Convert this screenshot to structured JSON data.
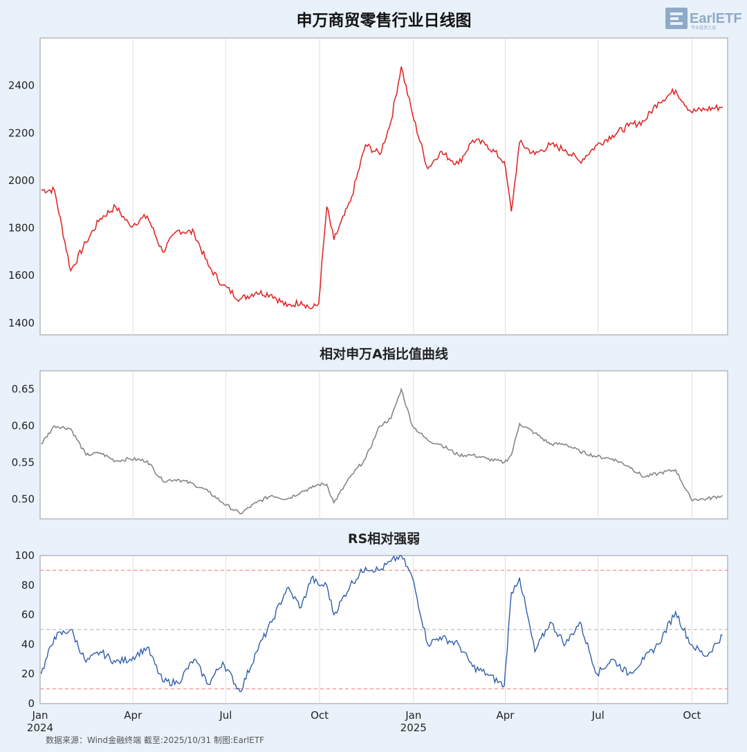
{
  "chart_data": [
    {
      "type": "line",
      "title": "申万商贸零售行业日线图",
      "ylim": [
        1350,
        2600
      ],
      "yticks": [
        1400,
        1600,
        1800,
        2000,
        2200,
        2400
      ],
      "color": "#e02828",
      "series": [
        {
          "x": [
            "2024-01-02",
            "2024-01-15",
            "2024-01-31",
            "2024-02-15",
            "2024-02-29",
            "2024-03-15",
            "2024-03-29",
            "2024-04-15",
            "2024-04-30",
            "2024-05-15",
            "2024-05-31",
            "2024-06-14",
            "2024-06-28",
            "2024-07-15",
            "2024-07-31",
            "2024-08-15",
            "2024-08-30",
            "2024-09-13",
            "2024-09-23",
            "2024-09-30",
            "2024-10-08",
            "2024-10-15",
            "2024-10-31",
            "2024-11-15",
            "2024-11-29",
            "2024-12-10",
            "2024-12-20",
            "2024-12-31",
            "2025-01-15",
            "2025-01-27",
            "2025-02-14",
            "2025-02-28",
            "2025-03-14",
            "2025-03-31",
            "2025-04-07",
            "2025-04-15",
            "2025-04-30",
            "2025-05-15",
            "2025-05-30",
            "2025-06-13",
            "2025-06-30",
            "2025-07-15",
            "2025-07-31",
            "2025-08-15",
            "2025-08-29",
            "2025-09-15",
            "2025-09-30",
            "2025-10-15",
            "2025-10-31"
          ],
          "values": [
            1960,
            1960,
            1620,
            1740,
            1840,
            1890,
            1810,
            1850,
            1700,
            1790,
            1780,
            1640,
            1560,
            1500,
            1530,
            1520,
            1470,
            1490,
            1460,
            1480,
            1890,
            1750,
            1910,
            2150,
            2110,
            2250,
            2480,
            2280,
            2050,
            2120,
            2070,
            2170,
            2150,
            2080,
            1870,
            2160,
            2110,
            2150,
            2130,
            2080,
            2150,
            2190,
            2230,
            2250,
            2330,
            2380,
            2290,
            2300,
            2310
          ]
        }
      ]
    },
    {
      "type": "line",
      "title": "相对申万A指比值曲线",
      "ylim": [
        0.473,
        0.675
      ],
      "yticks": [
        "0.50",
        "0.55",
        "0.60",
        "0.65"
      ],
      "color": "#858585",
      "series": [
        {
          "x": [
            "2024-01-02",
            "2024-01-15",
            "2024-01-31",
            "2024-02-15",
            "2024-02-29",
            "2024-03-15",
            "2024-03-29",
            "2024-04-15",
            "2024-04-30",
            "2024-05-15",
            "2024-05-31",
            "2024-06-14",
            "2024-06-28",
            "2024-07-15",
            "2024-07-31",
            "2024-08-15",
            "2024-08-30",
            "2024-09-13",
            "2024-09-23",
            "2024-09-30",
            "2024-10-08",
            "2024-10-15",
            "2024-10-31",
            "2024-11-15",
            "2024-11-29",
            "2024-12-10",
            "2024-12-20",
            "2024-12-31",
            "2025-01-15",
            "2025-01-27",
            "2025-02-14",
            "2025-02-28",
            "2025-03-14",
            "2025-03-31",
            "2025-04-07",
            "2025-04-15",
            "2025-04-30",
            "2025-05-15",
            "2025-05-30",
            "2025-06-13",
            "2025-06-30",
            "2025-07-15",
            "2025-07-31",
            "2025-08-15",
            "2025-08-29",
            "2025-09-15",
            "2025-09-30",
            "2025-10-15",
            "2025-10-31"
          ],
          "values": [
            0.575,
            0.6,
            0.596,
            0.56,
            0.563,
            0.552,
            0.555,
            0.552,
            0.525,
            0.527,
            0.52,
            0.51,
            0.495,
            0.48,
            0.495,
            0.505,
            0.5,
            0.51,
            0.515,
            0.52,
            0.52,
            0.495,
            0.53,
            0.555,
            0.6,
            0.61,
            0.65,
            0.6,
            0.58,
            0.575,
            0.56,
            0.56,
            0.555,
            0.55,
            0.56,
            0.603,
            0.59,
            0.575,
            0.575,
            0.565,
            0.558,
            0.555,
            0.545,
            0.53,
            0.535,
            0.54,
            0.5,
            0.5,
            0.505
          ]
        }
      ]
    },
    {
      "type": "line",
      "title": "RS相对强弱",
      "ylim": [
        0,
        100
      ],
      "yticks": [
        0,
        20,
        40,
        60,
        80,
        100
      ],
      "reference_lines": [
        {
          "y": 90,
          "color": "#ff8c8c"
        },
        {
          "y": 50,
          "color": "#bbbbbb"
        },
        {
          "y": 10,
          "color": "#ff8c8c"
        }
      ],
      "color": "#2f5ca8",
      "series": [
        {
          "x": [
            "2024-01-02",
            "2024-01-15",
            "2024-01-31",
            "2024-02-15",
            "2024-02-29",
            "2024-03-15",
            "2024-03-29",
            "2024-04-15",
            "2024-04-30",
            "2024-05-15",
            "2024-05-31",
            "2024-06-14",
            "2024-06-28",
            "2024-07-15",
            "2024-07-31",
            "2024-08-15",
            "2024-08-30",
            "2024-09-13",
            "2024-09-23",
            "2024-09-30",
            "2024-10-08",
            "2024-10-15",
            "2024-10-31",
            "2024-11-15",
            "2024-11-29",
            "2024-12-10",
            "2024-12-20",
            "2024-12-31",
            "2025-01-15",
            "2025-01-27",
            "2025-02-14",
            "2025-02-28",
            "2025-03-14",
            "2025-03-31",
            "2025-04-07",
            "2025-04-15",
            "2025-04-30",
            "2025-05-15",
            "2025-05-30",
            "2025-06-13",
            "2025-06-30",
            "2025-07-15",
            "2025-07-31",
            "2025-08-15",
            "2025-08-29",
            "2025-09-15",
            "2025-09-30",
            "2025-10-15",
            "2025-10-31"
          ],
          "values": [
            20,
            45,
            50,
            28,
            35,
            28,
            30,
            38,
            15,
            14,
            30,
            13,
            28,
            8,
            35,
            55,
            78,
            65,
            85,
            80,
            80,
            60,
            80,
            92,
            90,
            96,
            100,
            85,
            40,
            45,
            40,
            25,
            20,
            12,
            75,
            85,
            35,
            55,
            40,
            55,
            20,
            30,
            20,
            30,
            40,
            62,
            40,
            32,
            46
          ]
        }
      ],
      "x_ticks": [
        {
          "label": "Jan",
          "year": "2024"
        },
        {
          "label": "Apr"
        },
        {
          "label": "Jul"
        },
        {
          "label": "Oct"
        },
        {
          "label": "Jan",
          "year": "2025"
        },
        {
          "label": "Apr"
        },
        {
          "label": "Jul"
        },
        {
          "label": "Oct"
        }
      ],
      "x_tick_dates": [
        "2024-01-01",
        "2024-04-01",
        "2024-07-01",
        "2024-10-01",
        "2025-01-01",
        "2025-04-01",
        "2025-07-01",
        "2025-10-01"
      ]
    }
  ],
  "logo": {
    "text": "EarlETF",
    "tagline": "专业投资之选"
  },
  "source_note": "数据来源：Wind金融终端 截至:2025/10/31 制图:EarlETF",
  "colors": {
    "background": "#e9f2fb",
    "plot_bg": "#ffffff",
    "grid": "#dddddd"
  }
}
